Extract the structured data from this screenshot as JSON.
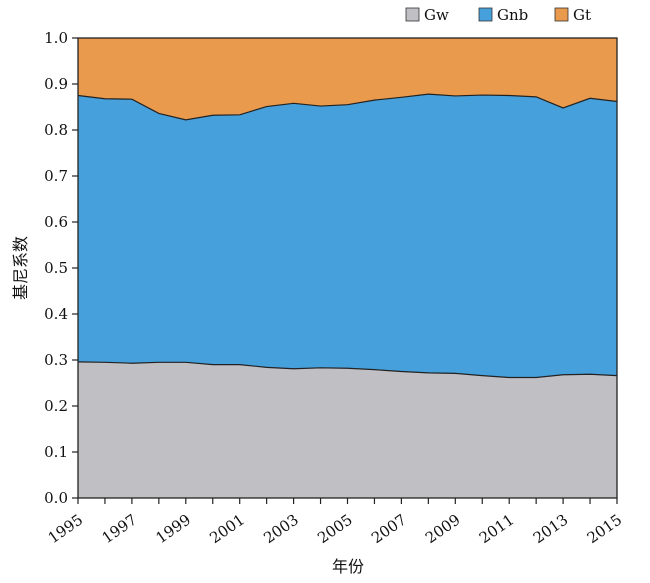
{
  "chart_data": {
    "type": "area",
    "stacked": true,
    "x": [
      1995,
      1996,
      1997,
      1998,
      1999,
      2000,
      2001,
      2002,
      2003,
      2004,
      2005,
      2006,
      2007,
      2008,
      2009,
      2010,
      2011,
      2012,
      2013,
      2014,
      2015
    ],
    "x_tick_labels": [
      "1995",
      "1997",
      "1999",
      "2001",
      "2003",
      "2005",
      "2007",
      "2009",
      "2011",
      "2013",
      "2015"
    ],
    "y_tick_labels": [
      "0.0",
      "0.1",
      "0.2",
      "0.3",
      "0.4",
      "0.5",
      "0.6",
      "0.7",
      "0.8",
      "0.9",
      "1.0"
    ],
    "ylim": [
      0,
      1.0
    ],
    "xlim": [
      1995,
      2015
    ],
    "xlabel": "年份",
    "ylabel": "基尼系数",
    "legend_position": "top-right",
    "grid": false,
    "series": [
      {
        "name": "Gw",
        "color": "#c0bfc4",
        "values": [
          0.296,
          0.295,
          0.293,
          0.295,
          0.295,
          0.29,
          0.29,
          0.284,
          0.281,
          0.283,
          0.282,
          0.279,
          0.275,
          0.272,
          0.271,
          0.266,
          0.262,
          0.262,
          0.268,
          0.269,
          0.266
        ]
      },
      {
        "name": "Gnb",
        "color": "#46a0db",
        "values": [
          0.579,
          0.573,
          0.574,
          0.541,
          0.527,
          0.542,
          0.543,
          0.567,
          0.577,
          0.569,
          0.573,
          0.586,
          0.596,
          0.606,
          0.603,
          0.61,
          0.613,
          0.61,
          0.58,
          0.6,
          0.596
        ]
      },
      {
        "name": "Gt",
        "color": "#e99a4d",
        "values": [
          0.125,
          0.132,
          0.133,
          0.164,
          0.178,
          0.168,
          0.167,
          0.149,
          0.142,
          0.148,
          0.145,
          0.135,
          0.129,
          0.122,
          0.126,
          0.124,
          0.125,
          0.128,
          0.152,
          0.131,
          0.138
        ]
      }
    ]
  }
}
